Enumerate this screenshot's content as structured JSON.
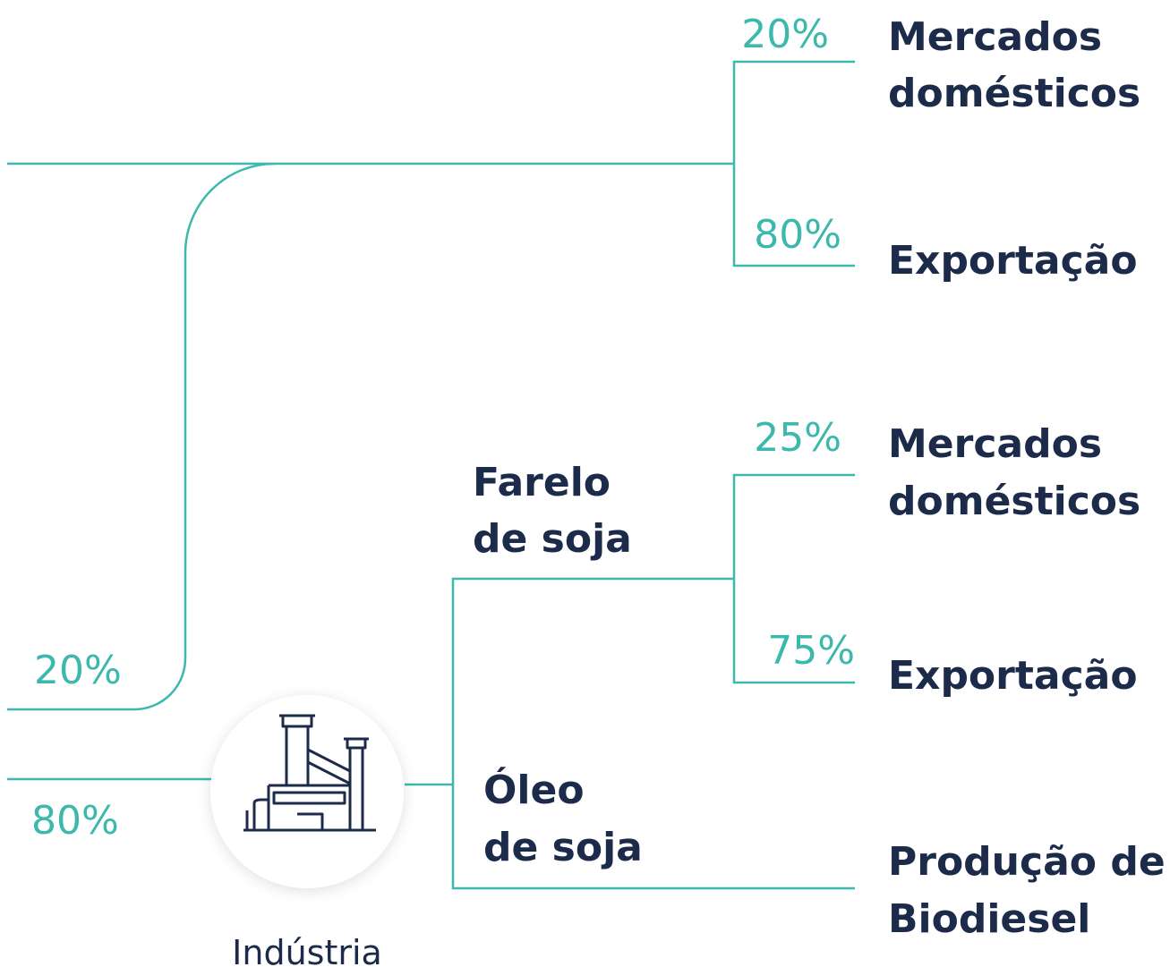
{
  "inputs": [
    {
      "share": "20%"
    },
    {
      "share": "80%"
    }
  ],
  "hub": {
    "label": "Indústria"
  },
  "products": [
    {
      "label_lines": [
        "Farelo",
        "de soja"
      ]
    },
    {
      "label_lines": [
        "Óleo",
        "de soja"
      ]
    }
  ],
  "destinations": [
    {
      "share": "20%",
      "label_lines": [
        "Mercados",
        "domésticos"
      ]
    },
    {
      "share": "80%",
      "label_lines": [
        "Exportação"
      ]
    },
    {
      "share": "25%",
      "label_lines": [
        "Mercados",
        "domésticos"
      ]
    },
    {
      "share": "75%",
      "label_lines": [
        "Exportação"
      ]
    },
    {
      "label_lines": [
        "Produção de",
        "Biodiesel"
      ]
    }
  ]
}
